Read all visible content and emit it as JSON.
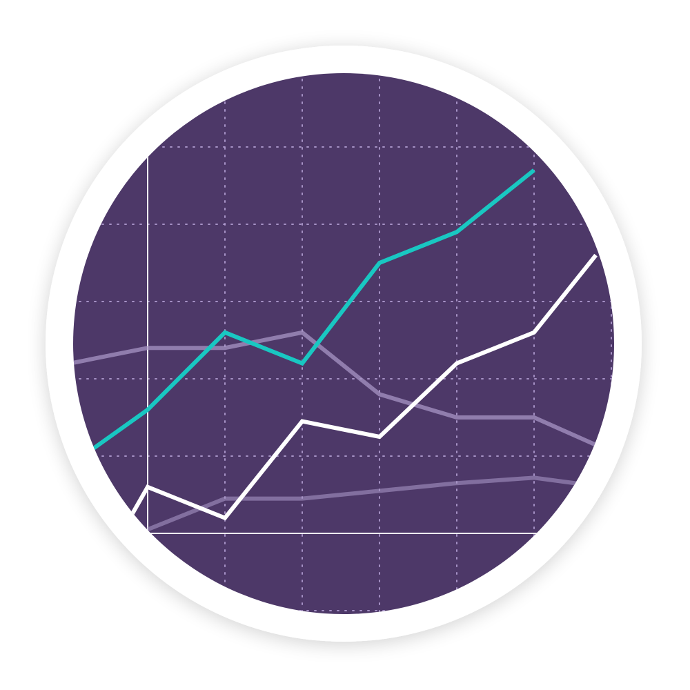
{
  "colors": {
    "page_background": "#ffffff",
    "ring": "#ffffff",
    "disc": "#4d3868",
    "grid": "#b09cd0",
    "axis": "#ffffff",
    "teal_series": "#19c7c2",
    "white_series": "#ffffff",
    "faded_series": "#a794c4"
  },
  "chart_data": {
    "type": "line",
    "title": "",
    "xlabel": "",
    "ylabel": "",
    "x": [
      -1,
      0,
      1,
      2,
      3,
      4,
      5,
      6
    ],
    "xlim": [
      -1,
      6
    ],
    "ylim": [
      0,
      5
    ],
    "grid": true,
    "legend": "none",
    "series": [
      {
        "color_key": "teal_series",
        "opacity": 1,
        "points": [
          [
            -0.7,
            1.1
          ],
          [
            0,
            1.6
          ],
          [
            1,
            2.6
          ],
          [
            2,
            2.2
          ],
          [
            3,
            3.5
          ],
          [
            4,
            3.9
          ],
          [
            5,
            4.7
          ]
        ]
      },
      {
        "color_key": "white_series",
        "opacity": 1,
        "points": [
          [
            -0.2,
            0.25
          ],
          [
            0,
            0.6
          ],
          [
            1,
            0.2
          ],
          [
            2,
            1.45
          ],
          [
            3,
            1.25
          ],
          [
            4,
            2.2
          ],
          [
            5,
            2.6
          ],
          [
            5.8,
            3.6
          ]
        ]
      },
      {
        "color_key": "faded_series",
        "opacity": 0.75,
        "points": [
          [
            -1,
            2.2
          ],
          [
            0,
            2.4
          ],
          [
            1,
            2.4
          ],
          [
            2,
            2.6
          ],
          [
            3,
            1.8
          ],
          [
            4,
            1.5
          ],
          [
            5,
            1.5
          ],
          [
            5.9,
            1.1
          ]
        ]
      },
      {
        "color_key": "faded_series",
        "opacity": 0.6,
        "points": [
          [
            0,
            0.05
          ],
          [
            1,
            0.45
          ],
          [
            2,
            0.45
          ],
          [
            3,
            0.55
          ],
          [
            4,
            0.65
          ],
          [
            5,
            0.72
          ],
          [
            5.9,
            0.6
          ]
        ]
      }
    ]
  }
}
